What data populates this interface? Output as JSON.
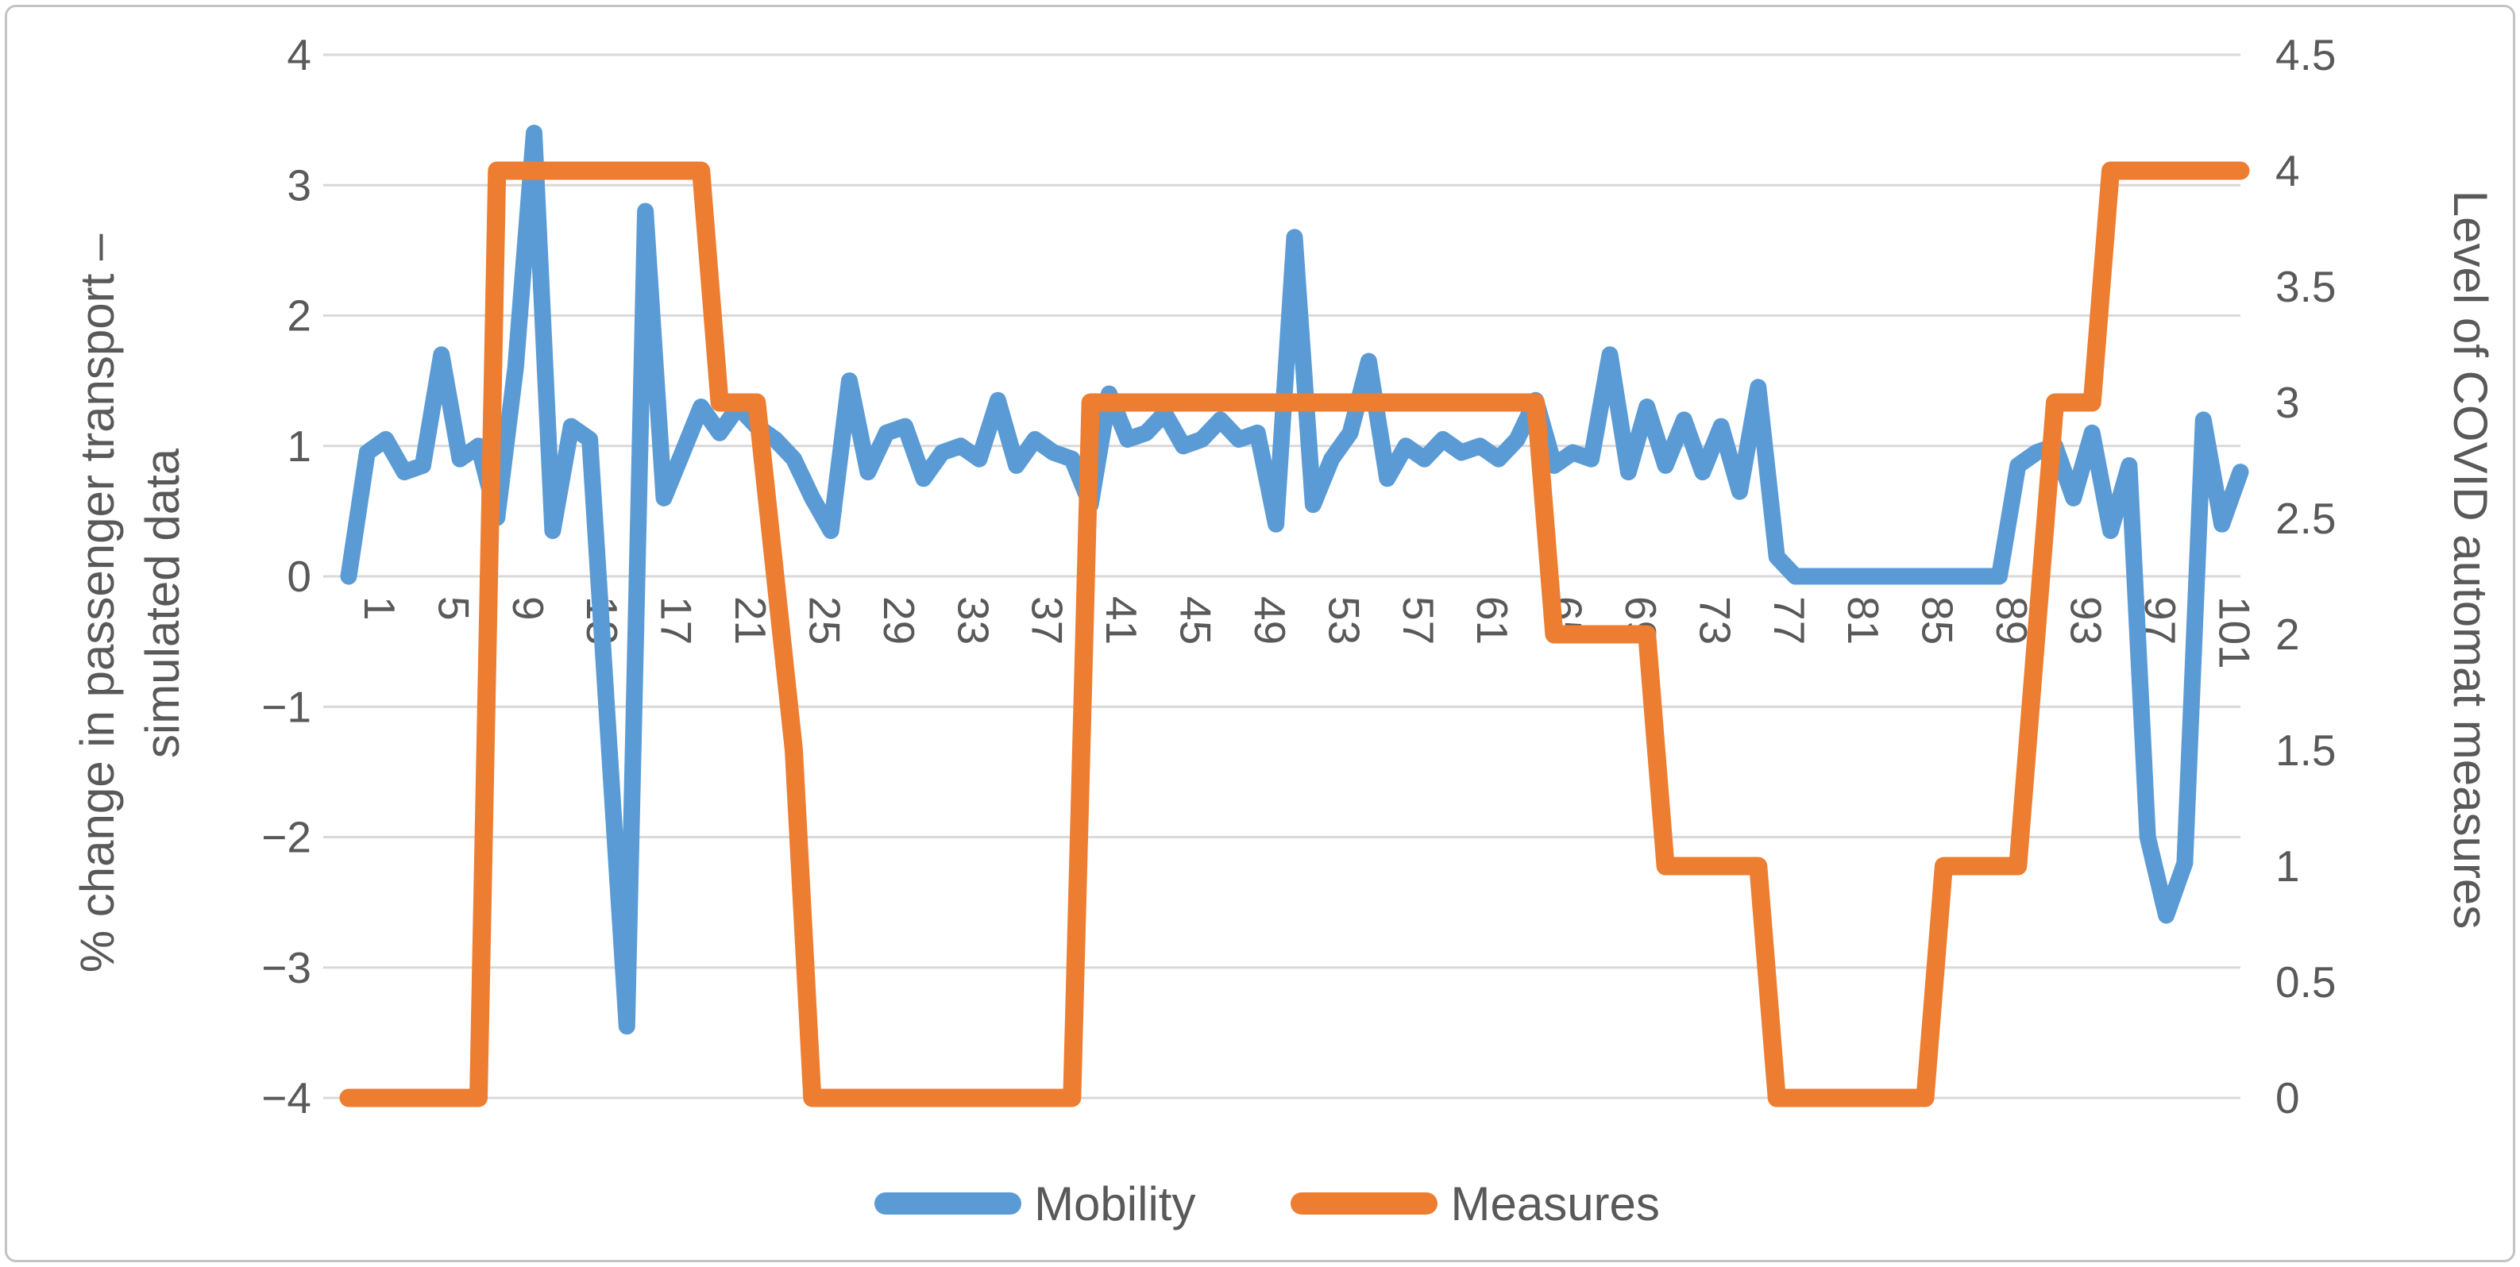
{
  "titles": {
    "y_left_line1": "% change in passenger transport –",
    "y_left_line2": "simulated data",
    "y_right": "Level of COVID automat measures"
  },
  "legend": {
    "items": [
      {
        "label": "Mobility",
        "color": "#5B9BD5"
      },
      {
        "label": "Measures",
        "color": "#ED7D31"
      }
    ],
    "position": "bottom-center"
  },
  "chart_data": {
    "type": "line",
    "title": "",
    "xlabel": "",
    "grid": "horizontal-only",
    "background": "#ffffff",
    "gridline_color": "#D9D9D9",
    "text_color": "#595959",
    "n_points": 103,
    "x_tick_interval": 4,
    "x_tick_labels": [
      "1",
      "5",
      "9",
      "13",
      "17",
      "21",
      "25",
      "29",
      "33",
      "37",
      "41",
      "45",
      "49",
      "53",
      "57",
      "61",
      "65",
      "69",
      "73",
      "77",
      "81",
      "85",
      "89",
      "93",
      "97",
      "101"
    ],
    "y_left": {
      "min": -4,
      "max": 4,
      "step": 1,
      "labels": [
        "4",
        "3",
        "2",
        "1",
        "0",
        "−1",
        "−2",
        "−3",
        "−4"
      ],
      "title": "% change in passenger transport – simulated data"
    },
    "y_right": {
      "min": 0,
      "max": 4.5,
      "step": 0.5,
      "labels": [
        "4.5",
        "4",
        "3.5",
        "3",
        "2.5",
        "2",
        "1.5",
        "1",
        "0.5",
        "0"
      ],
      "title": "Level of COVID automat measures"
    },
    "series": [
      {
        "name": "Mobility",
        "axis": "left",
        "color": "#5B9BD5",
        "stroke_width": 21,
        "values": [
          0,
          0.95,
          1.05,
          0.8,
          0.85,
          1.7,
          0.9,
          1,
          0.45,
          1.6,
          3.4,
          0.35,
          1.15,
          1.05,
          -1.2,
          -3.45,
          2.8,
          0.6,
          0.95,
          1.3,
          1.1,
          1.3,
          1.15,
          1.05,
          0.9,
          0.6,
          0.35,
          1.5,
          0.8,
          1.1,
          1.15,
          0.75,
          0.95,
          1,
          0.9,
          1.35,
          0.85,
          1.05,
          0.95,
          0.9,
          0.55,
          1.4,
          1.05,
          1.1,
          1.25,
          1,
          1.05,
          1.2,
          1.05,
          1.1,
          0.4,
          2.6,
          0.55,
          0.9,
          1.1,
          1.65,
          0.75,
          1,
          0.9,
          1.05,
          0.95,
          1,
          0.9,
          1.05,
          1.35,
          0.85,
          0.95,
          0.9,
          1.7,
          0.8,
          1.3,
          0.85,
          1.2,
          0.8,
          1.15,
          0.65,
          1.45,
          0.15,
          0,
          0,
          0,
          0,
          0,
          0,
          0,
          0,
          0,
          0,
          0,
          0,
          0.85,
          0.95,
          1,
          0.6,
          1.1,
          0.35,
          0.85,
          -2,
          -2.6,
          -2.2,
          1.2,
          0.4,
          0.8
        ]
      },
      {
        "name": "Measures",
        "axis": "right",
        "color": "#ED7D31",
        "stroke_width": 23,
        "values": [
          0,
          0,
          0,
          0,
          0,
          0,
          0,
          0,
          4,
          4,
          4,
          4,
          4,
          4,
          4,
          4,
          4,
          4,
          4,
          4,
          3,
          3,
          3,
          2.25,
          1.5,
          0,
          0,
          0,
          0,
          0,
          0,
          0,
          0,
          0,
          0,
          0,
          0,
          0,
          0,
          0,
          3,
          3,
          3,
          3,
          3,
          3,
          3,
          3,
          3,
          3,
          3,
          3,
          3,
          3,
          3,
          3,
          3,
          3,
          3,
          3,
          3,
          3,
          3,
          3,
          3,
          2,
          2,
          2,
          2,
          2,
          2,
          1,
          1,
          1,
          1,
          1,
          1,
          0,
          0,
          0,
          0,
          0,
          0,
          0,
          0,
          0,
          1,
          1,
          1,
          1,
          1,
          2,
          3,
          3,
          3,
          4,
          4,
          4,
          4,
          4,
          4,
          4,
          4
        ]
      }
    ]
  }
}
